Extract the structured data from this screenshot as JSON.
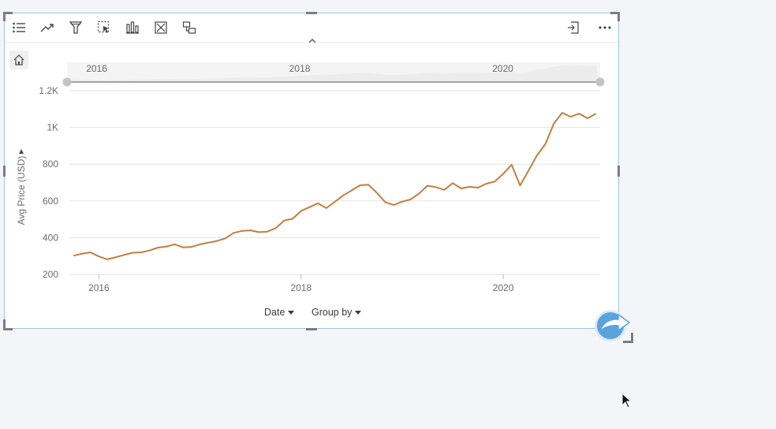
{
  "toolbar": {
    "buttons": [
      {
        "name": "legend-list-icon"
      },
      {
        "name": "trend-line-icon"
      },
      {
        "name": "filter-icon"
      },
      {
        "name": "selection-icon"
      },
      {
        "name": "bar-chart-icon"
      },
      {
        "name": "maximize-icon"
      },
      {
        "name": "flip-card-icon"
      }
    ],
    "right_buttons": [
      {
        "name": "export-icon"
      },
      {
        "name": "more-options-icon"
      }
    ]
  },
  "footer": {
    "x_field_label": "Date",
    "group_by_label": "Group by"
  },
  "colors": {
    "line": "#c07f3e",
    "accent": "#5aa3dd",
    "card_border": "#9bc6e4"
  },
  "chart_data": {
    "type": "line",
    "ylabel": "Avg Price (USD)",
    "xlabel": "Date",
    "ylim": [
      200,
      1200
    ],
    "yticks": [
      "200",
      "400",
      "600",
      "800",
      "1K",
      "1.2K"
    ],
    "ytick_values": [
      200,
      400,
      600,
      800,
      1000,
      1200
    ],
    "xlim": [
      "2015-10",
      "2020-12"
    ],
    "xticks": [
      "2016",
      "2018",
      "2020"
    ],
    "xtick_values": [
      "2016-01",
      "2018-01",
      "2020-01"
    ],
    "grid": true,
    "series": [
      {
        "x": [
          "2015-10",
          "2015-11",
          "2015-12",
          "2016-01",
          "2016-02",
          "2016-03",
          "2016-04",
          "2016-05",
          "2016-06",
          "2016-07",
          "2016-08",
          "2016-09",
          "2016-10",
          "2016-11",
          "2016-12",
          "2017-01",
          "2017-02",
          "2017-03",
          "2017-04",
          "2017-05",
          "2017-06",
          "2017-07",
          "2017-08",
          "2017-09",
          "2017-10",
          "2017-11",
          "2017-12",
          "2018-01",
          "2018-02",
          "2018-03",
          "2018-04",
          "2018-05",
          "2018-06",
          "2018-07",
          "2018-08",
          "2018-09",
          "2018-10",
          "2018-11",
          "2018-12",
          "2019-01",
          "2019-02",
          "2019-03",
          "2019-04",
          "2019-05",
          "2019-06",
          "2019-07",
          "2019-08",
          "2019-09",
          "2019-10",
          "2019-11",
          "2019-12",
          "2020-01",
          "2020-02",
          "2020-03",
          "2020-04",
          "2020-05",
          "2020-06",
          "2020-07",
          "2020-08",
          "2020-09",
          "2020-10",
          "2020-11",
          "2020-12"
        ],
        "values": [
          302,
          313,
          320,
          298,
          282,
          294,
          306,
          318,
          320,
          330,
          346,
          352,
          364,
          347,
          350,
          364,
          373,
          382,
          396,
          426,
          437,
          440,
          430,
          433,
          452,
          493,
          503,
          546,
          566,
          587,
          561,
          595,
          630,
          657,
          685,
          688,
          644,
          593,
          578,
          596,
          608,
          640,
          683,
          675,
          660,
          697,
          668,
          677,
          672,
          694,
          706,
          748,
          797,
          684,
          765,
          848,
          910,
          1020,
          1080,
          1058,
          1075,
          1050,
          1075
        ]
      }
    ],
    "navigator": {
      "xticks": [
        "2016",
        "2018",
        "2020"
      ]
    }
  }
}
